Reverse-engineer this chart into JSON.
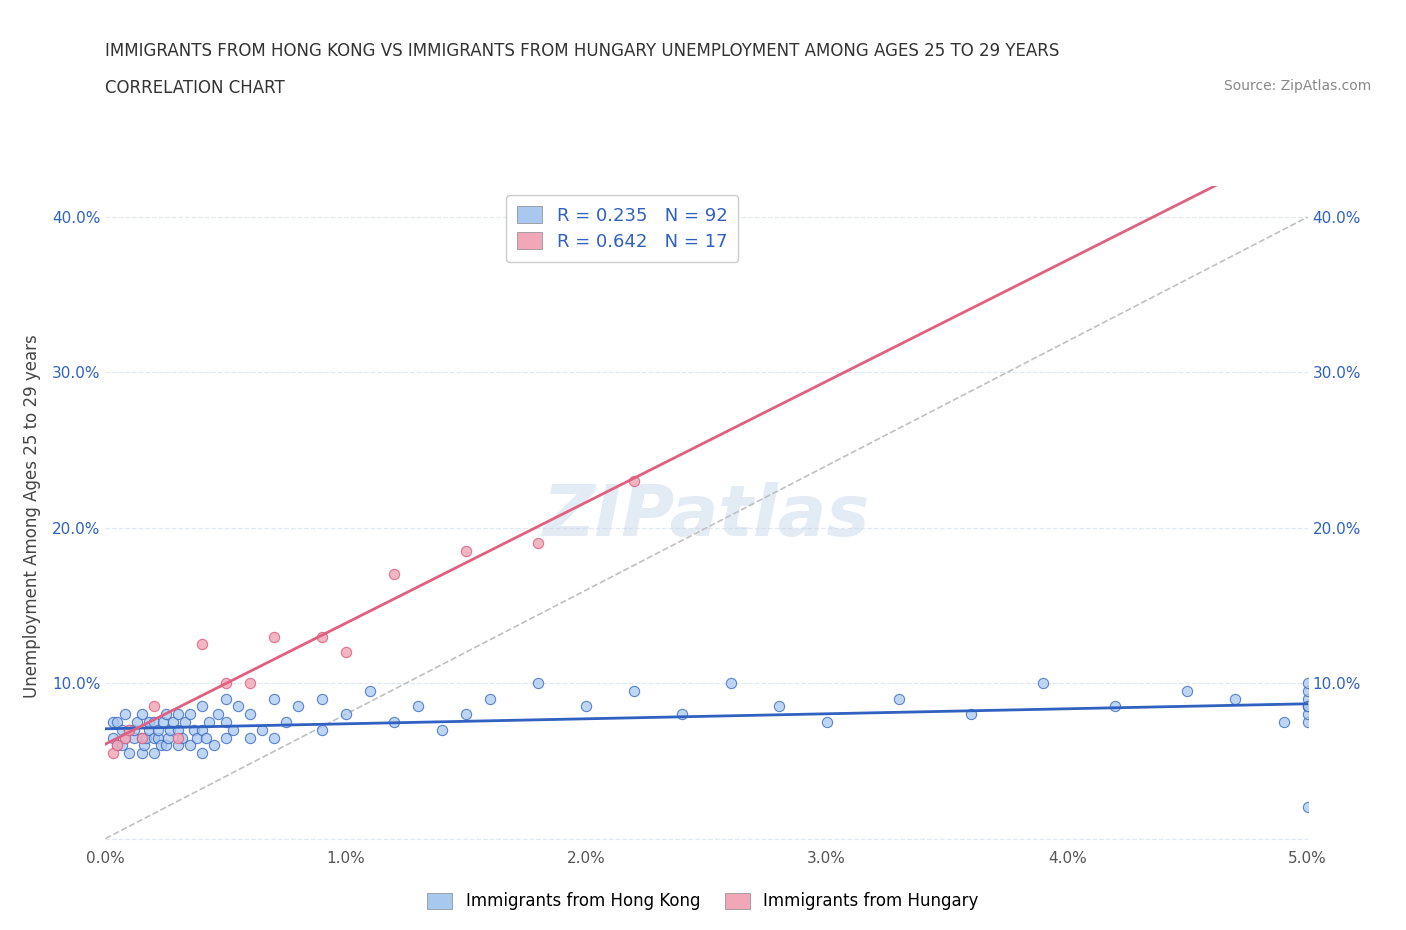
{
  "title_line1": "IMMIGRANTS FROM HONG KONG VS IMMIGRANTS FROM HUNGARY UNEMPLOYMENT AMONG AGES 25 TO 29 YEARS",
  "title_line2": "CORRELATION CHART",
  "source_text": "Source: ZipAtlas.com",
  "ylabel": "Unemployment Among Ages 25 to 29 years",
  "xlim": [
    0.0,
    0.05
  ],
  "ylim": [
    -0.005,
    0.42
  ],
  "x_ticks": [
    0.0,
    0.01,
    0.02,
    0.03,
    0.04,
    0.05
  ],
  "x_tick_labels": [
    "0.0%",
    "1.0%",
    "2.0%",
    "3.0%",
    "4.0%",
    "5.0%"
  ],
  "y_ticks": [
    0.0,
    0.1,
    0.2,
    0.3,
    0.4
  ],
  "y_tick_labels": [
    "",
    "10.0%",
    "20.0%",
    "30.0%",
    "40.0%"
  ],
  "r_hk": 0.235,
  "n_hk": 92,
  "r_hu": 0.642,
  "n_hu": 17,
  "color_hk": "#A8C8F0",
  "color_hu": "#F0A8B8",
  "color_hk_line": "#3060C0",
  "color_hu_line": "#E06080",
  "color_trend_dashed": "#C0C0C0",
  "watermark": "ZIPatlas",
  "hk_x": [
    0.0003,
    0.0003,
    0.0005,
    0.0005,
    0.0007,
    0.0007,
    0.0008,
    0.0008,
    0.001,
    0.001,
    0.0012,
    0.0012,
    0.0013,
    0.0015,
    0.0015,
    0.0015,
    0.0016,
    0.0017,
    0.0018,
    0.0018,
    0.002,
    0.002,
    0.002,
    0.0022,
    0.0022,
    0.0023,
    0.0024,
    0.0025,
    0.0025,
    0.0026,
    0.0027,
    0.0028,
    0.003,
    0.003,
    0.003,
    0.0032,
    0.0033,
    0.0035,
    0.0035,
    0.0037,
    0.0038,
    0.004,
    0.004,
    0.004,
    0.0042,
    0.0043,
    0.0045,
    0.0047,
    0.005,
    0.005,
    0.005,
    0.0053,
    0.0055,
    0.006,
    0.006,
    0.0065,
    0.007,
    0.007,
    0.0075,
    0.008,
    0.009,
    0.009,
    0.01,
    0.011,
    0.012,
    0.013,
    0.014,
    0.015,
    0.016,
    0.018,
    0.02,
    0.022,
    0.024,
    0.026,
    0.028,
    0.03,
    0.033,
    0.036,
    0.039,
    0.042,
    0.045,
    0.047,
    0.049,
    0.05,
    0.05,
    0.05,
    0.05,
    0.05,
    0.05,
    0.05,
    0.05,
    0.05
  ],
  "hk_y": [
    0.065,
    0.075,
    0.06,
    0.075,
    0.06,
    0.07,
    0.065,
    0.08,
    0.055,
    0.07,
    0.065,
    0.07,
    0.075,
    0.055,
    0.065,
    0.08,
    0.06,
    0.065,
    0.07,
    0.075,
    0.055,
    0.065,
    0.075,
    0.065,
    0.07,
    0.06,
    0.075,
    0.06,
    0.08,
    0.065,
    0.07,
    0.075,
    0.06,
    0.07,
    0.08,
    0.065,
    0.075,
    0.06,
    0.08,
    0.07,
    0.065,
    0.055,
    0.07,
    0.085,
    0.065,
    0.075,
    0.06,
    0.08,
    0.065,
    0.075,
    0.09,
    0.07,
    0.085,
    0.065,
    0.08,
    0.07,
    0.065,
    0.09,
    0.075,
    0.085,
    0.07,
    0.09,
    0.08,
    0.095,
    0.075,
    0.085,
    0.07,
    0.08,
    0.09,
    0.1,
    0.085,
    0.095,
    0.08,
    0.1,
    0.085,
    0.075,
    0.09,
    0.08,
    0.1,
    0.085,
    0.095,
    0.09,
    0.075,
    0.085,
    0.02,
    0.075,
    0.08,
    0.085,
    0.09,
    0.095,
    0.1,
    0.085
  ],
  "hu_x": [
    0.0003,
    0.0005,
    0.0008,
    0.001,
    0.0015,
    0.002,
    0.003,
    0.004,
    0.005,
    0.006,
    0.007,
    0.009,
    0.01,
    0.012,
    0.015,
    0.018,
    0.022
  ],
  "hu_y": [
    0.055,
    0.06,
    0.065,
    0.07,
    0.065,
    0.085,
    0.065,
    0.125,
    0.1,
    0.1,
    0.13,
    0.13,
    0.12,
    0.17,
    0.185,
    0.19,
    0.23
  ],
  "legend_label_hk": "Immigrants from Hong Kong",
  "legend_label_hu": "Immigrants from Hungary",
  "background_color": "#FFFFFF",
  "grid_color": "#E0E8F0"
}
